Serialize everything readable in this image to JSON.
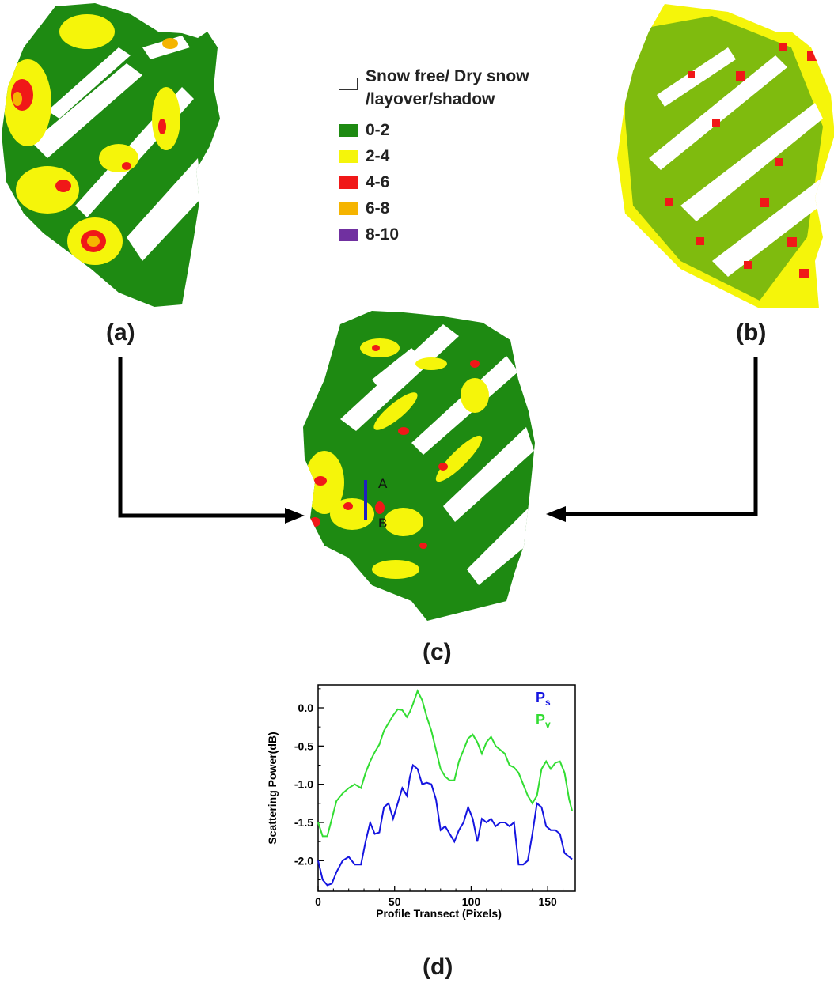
{
  "panels": {
    "a": "(a)",
    "b": "(b)",
    "c": "(c)",
    "d": "(d)"
  },
  "legend": {
    "items": [
      {
        "label_line1": "Snow free/ Dry  snow",
        "label_line2": "/layover/shadow",
        "color": "#ffffff"
      },
      {
        "label": "0-2",
        "color": "#1e8a12"
      },
      {
        "label": "2-4",
        "color": "#f5f50a"
      },
      {
        "label": "4-6",
        "color": "#f01818"
      },
      {
        "label": "6-8",
        "color": "#f5b400"
      },
      {
        "label": "8-10",
        "color": "#7030a0"
      }
    ]
  },
  "transect": {
    "start": "A",
    "end": "B",
    "color": "#2020c0"
  },
  "chart_data": {
    "type": "line",
    "title": "",
    "xlabel": "Profile Transect (Pixels)",
    "ylabel": "Scattering Power(dB)",
    "xlim": [
      0,
      168
    ],
    "ylim": [
      -2.4,
      0.3
    ],
    "xticks": [
      0,
      50,
      100,
      150
    ],
    "yticks": [
      0.0,
      -0.5,
      -1.0,
      -1.5,
      -2.0
    ],
    "legend_position": "top-right",
    "series": [
      {
        "name": "Ps",
        "color": "#1515e0",
        "x": [
          0,
          3,
          6,
          9,
          12,
          16,
          20,
          24,
          28,
          31,
          34,
          37,
          40,
          43,
          46,
          49,
          52,
          55,
          58,
          60,
          62,
          65,
          68,
          71,
          74,
          77,
          80,
          83,
          86,
          89,
          92,
          95,
          98,
          101,
          104,
          107,
          110,
          113,
          116,
          119,
          122,
          125,
          128,
          131,
          134,
          137,
          140,
          143,
          146,
          149,
          152,
          155,
          158,
          161,
          164,
          166
        ],
        "values": [
          -2.0,
          -2.25,
          -2.32,
          -2.3,
          -2.15,
          -2.0,
          -1.95,
          -2.05,
          -2.05,
          -1.75,
          -1.5,
          -1.65,
          -1.63,
          -1.3,
          -1.25,
          -1.45,
          -1.25,
          -1.05,
          -1.15,
          -0.9,
          -0.75,
          -0.8,
          -1.0,
          -0.98,
          -1.0,
          -1.2,
          -1.6,
          -1.55,
          -1.65,
          -1.75,
          -1.6,
          -1.5,
          -1.3,
          -1.45,
          -1.75,
          -1.45,
          -1.5,
          -1.45,
          -1.55,
          -1.5,
          -1.5,
          -1.55,
          -1.5,
          -2.05,
          -2.05,
          -2.0,
          -1.65,
          -1.25,
          -1.3,
          -1.55,
          -1.6,
          -1.6,
          -1.65,
          -1.9,
          -1.95,
          -1.98
        ]
      },
      {
        "name": "Pv",
        "color": "#33dd33",
        "x": [
          0,
          3,
          6,
          9,
          12,
          16,
          20,
          24,
          28,
          31,
          34,
          37,
          40,
          43,
          46,
          49,
          52,
          55,
          58,
          60,
          62,
          65,
          68,
          71,
          74,
          77,
          80,
          83,
          86,
          89,
          92,
          95,
          98,
          101,
          104,
          107,
          110,
          113,
          116,
          119,
          122,
          125,
          128,
          131,
          134,
          137,
          140,
          143,
          146,
          149,
          152,
          155,
          158,
          161,
          164,
          166
        ],
        "values": [
          -1.5,
          -1.68,
          -1.68,
          -1.45,
          -1.22,
          -1.12,
          -1.05,
          -1.0,
          -1.05,
          -0.85,
          -0.7,
          -0.58,
          -0.48,
          -0.3,
          -0.2,
          -0.1,
          -0.02,
          -0.03,
          -0.12,
          -0.05,
          0.05,
          0.22,
          0.1,
          -0.12,
          -0.3,
          -0.55,
          -0.8,
          -0.9,
          -0.95,
          -0.95,
          -0.7,
          -0.55,
          -0.4,
          -0.35,
          -0.45,
          -0.6,
          -0.45,
          -0.38,
          -0.5,
          -0.55,
          -0.6,
          -0.75,
          -0.78,
          -0.85,
          -1.0,
          -1.15,
          -1.25,
          -1.15,
          -0.8,
          -0.7,
          -0.8,
          -0.72,
          -0.7,
          -0.85,
          -1.2,
          -1.35
        ]
      }
    ]
  }
}
